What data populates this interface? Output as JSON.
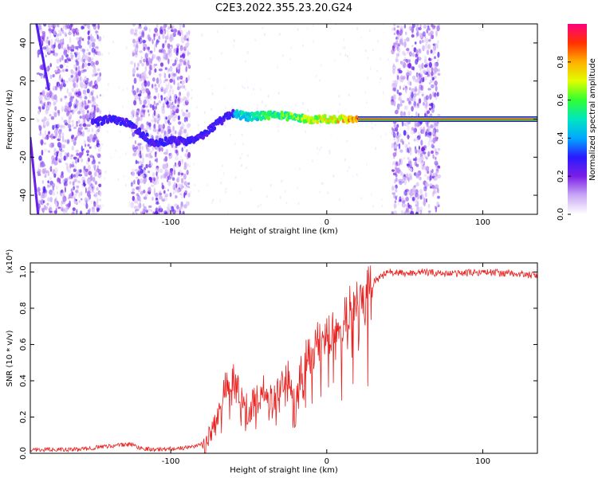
{
  "title": "C2E3.2022.355.23.20.G24",
  "chart_data": [
    {
      "type": "heatmap",
      "name": "spectrogram",
      "xlabel": "Height of straight line (km)",
      "ylabel": "Frequency (Hz)",
      "xlim": [
        -190,
        135
      ],
      "ylim": [
        -50,
        50
      ],
      "x_ticks": [
        -100,
        0,
        100
      ],
      "y_ticks": [
        -40,
        -20,
        0,
        20,
        40
      ],
      "colorbar": {
        "label": "Normalized spectral amplitude",
        "range": [
          0,
          1
        ],
        "ticks": [
          0.0,
          0.2,
          0.4,
          0.6,
          0.8
        ],
        "colormap": [
          "#ffffff",
          "#c9a8f5",
          "#7a1fe6",
          "#2a1aff",
          "#00a8ff",
          "#00e6c0",
          "#30ff30",
          "#e0ff00",
          "#ffb000",
          "#ff3000",
          "#ff0080"
        ]
      },
      "ridge": [
        {
          "x": -150,
          "freq": -2
        },
        {
          "x": -140,
          "freq": 0
        },
        {
          "x": -130,
          "freq": -1
        },
        {
          "x": -110,
          "freq": -13
        },
        {
          "x": -100,
          "freq": -11
        },
        {
          "x": -90,
          "freq": -12
        },
        {
          "x": -80,
          "freq": -9
        },
        {
          "x": -70,
          "freq": -2
        },
        {
          "x": -60,
          "freq": 3
        },
        {
          "x": -50,
          "freq": 1
        },
        {
          "x": -40,
          "freq": 2
        },
        {
          "x": -30,
          "freq": 2
        },
        {
          "x": -20,
          "freq": 0.5
        },
        {
          "x": -10,
          "freq": 0
        },
        {
          "x": 0,
          "freq": 0
        },
        {
          "x": 10,
          "freq": 0
        },
        {
          "x": 20,
          "freq": 0
        },
        {
          "x": 35,
          "freq": 0
        },
        {
          "x": 75,
          "freq": 0
        },
        {
          "x": 100,
          "freq": 0
        },
        {
          "x": 135,
          "freq": 0
        }
      ],
      "noise_bands": [
        [
          -185,
          -145
        ],
        [
          -125,
          -88
        ],
        [
          42,
          72
        ]
      ]
    },
    {
      "type": "line",
      "name": "snr",
      "xlabel": "Height of straight line (km)",
      "ylabel": "SNR (10 * v/v)",
      "y_multiplier": "(x10⁴)",
      "xlim": [
        -190,
        135
      ],
      "ylim": [
        0,
        1.05
      ],
      "x_ticks": [
        -100,
        0,
        100
      ],
      "y_ticks": [
        0.0,
        0.2,
        0.4,
        0.6,
        0.8,
        1.0
      ],
      "color": "#e8211f",
      "series": [
        {
          "x": [
            -190,
            -160,
            -140,
            -125,
            -120,
            -110,
            -90,
            -80,
            -75,
            -70,
            -65,
            -60,
            -55,
            -50,
            -45,
            -40,
            -35,
            -30,
            -25,
            -20,
            -15,
            -10,
            -5,
            0,
            5,
            10,
            15,
            20,
            25,
            30,
            40,
            50,
            60,
            80,
            100,
            120,
            135
          ],
          "y": [
            0.02,
            0.02,
            0.04,
            0.05,
            0.03,
            0.02,
            0.03,
            0.05,
            0.1,
            0.18,
            0.35,
            0.42,
            0.3,
            0.22,
            0.3,
            0.35,
            0.28,
            0.4,
            0.45,
            0.3,
            0.5,
            0.55,
            0.62,
            0.65,
            0.7,
            0.72,
            0.8,
            0.85,
            0.88,
            0.95,
            1.0,
            0.99,
            1.0,
            0.99,
            1.0,
            0.99,
            0.98
          ]
        }
      ]
    }
  ]
}
